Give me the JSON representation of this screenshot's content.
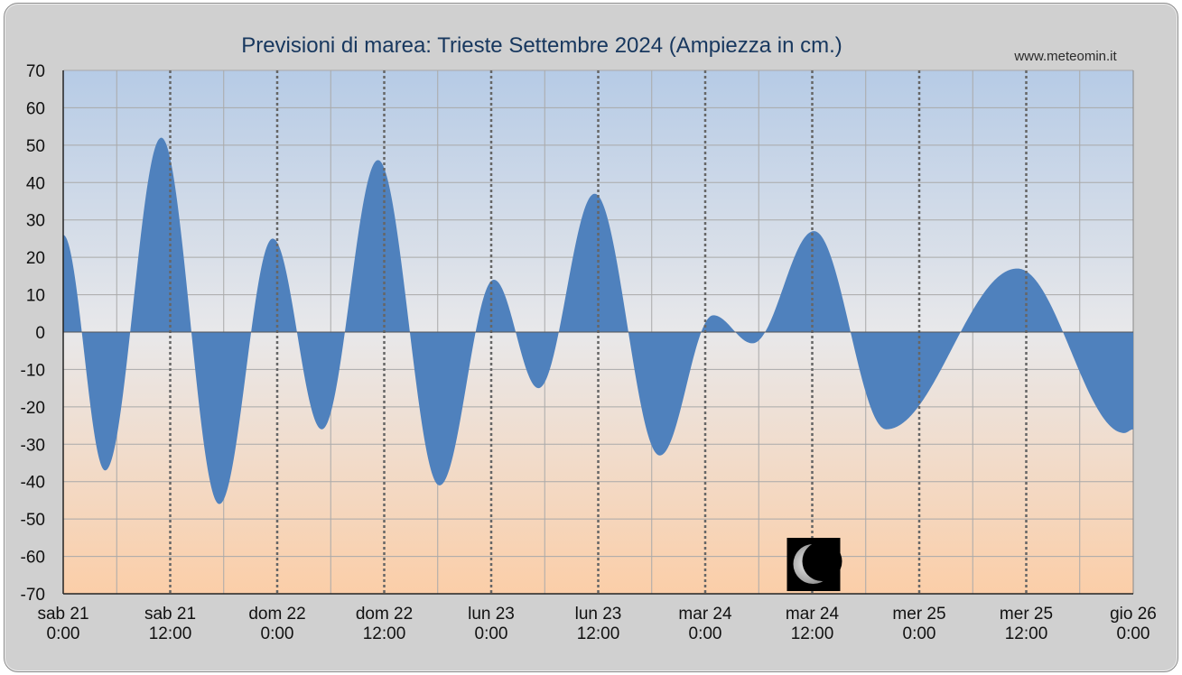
{
  "chart_data": {
    "type": "area",
    "title": "Previsioni di marea: Trieste Settembre 2024 (Ampiezza in cm.)",
    "credit": "www.meteomin.it",
    "xlabel": "",
    "ylabel": "",
    "ylim": [
      -70,
      70
    ],
    "yticks": [
      70,
      60,
      50,
      40,
      30,
      20,
      10,
      0,
      -10,
      -20,
      -30,
      -40,
      -50,
      -60,
      -70
    ],
    "xlim_hours": [
      0,
      120
    ],
    "x_ticks": [
      {
        "hour": 0,
        "day": "sab",
        "date": "21",
        "time": "0:00"
      },
      {
        "hour": 12,
        "day": "sab",
        "date": "21",
        "time": "12:00"
      },
      {
        "hour": 24,
        "day": "dom",
        "date": "22",
        "time": "0:00"
      },
      {
        "hour": 36,
        "day": "dom",
        "date": "22",
        "time": "12:00"
      },
      {
        "hour": 48,
        "day": "lun",
        "date": "23",
        "time": "0:00"
      },
      {
        "hour": 60,
        "day": "lun",
        "date": "23",
        "time": "12:00"
      },
      {
        "hour": 72,
        "day": "mar",
        "date": "24",
        "time": "0:00"
      },
      {
        "hour": 84,
        "day": "mar",
        "date": "24",
        "time": "12:00"
      },
      {
        "hour": 96,
        "day": "mer",
        "date": "25",
        "time": "0:00"
      },
      {
        "hour": 108,
        "day": "mer",
        "date": "25",
        "time": "12:00"
      },
      {
        "hour": 120,
        "day": "gio",
        "date": "26",
        "time": "0:00"
      }
    ],
    "minor_grid_hours": [
      6,
      18,
      30,
      42,
      54,
      66,
      78,
      90,
      102,
      114
    ],
    "grid": true,
    "series": [
      {
        "color": "#4f81bd",
        "extrema": [
          {
            "hour": 0,
            "value": 26
          },
          {
            "hour": 4.7,
            "value": -37
          },
          {
            "hour": 11,
            "value": 52
          },
          {
            "hour": 17.5,
            "value": -46
          },
          {
            "hour": 23.5,
            "value": 25
          },
          {
            "hour": 29,
            "value": -26
          },
          {
            "hour": 35.3,
            "value": 46
          },
          {
            "hour": 42.2,
            "value": -41
          },
          {
            "hour": 48.3,
            "value": 14
          },
          {
            "hour": 53.3,
            "value": -15
          },
          {
            "hour": 59.6,
            "value": 37
          },
          {
            "hour": 66.9,
            "value": -33
          },
          {
            "hour": 72.9,
            "value": 4.5
          },
          {
            "hour": 77.3,
            "value": -3
          },
          {
            "hour": 84.2,
            "value": 27
          },
          {
            "hour": 92.3,
            "value": -26
          },
          {
            "hour": 107,
            "value": 17
          },
          {
            "hour": 119,
            "value": -27
          },
          {
            "hour": 120,
            "value": -26
          }
        ]
      }
    ],
    "moon_phase": {
      "hour": 84,
      "phase": "waning crescent"
    },
    "colors": {
      "fill": "#4f81bd",
      "plot_top": "#b6cbe6",
      "plot_mid": "#e8e8ea",
      "plot_bottom": "#fbcea8",
      "grid": "#a9a9a9",
      "frame": "#d0d0d0"
    }
  }
}
